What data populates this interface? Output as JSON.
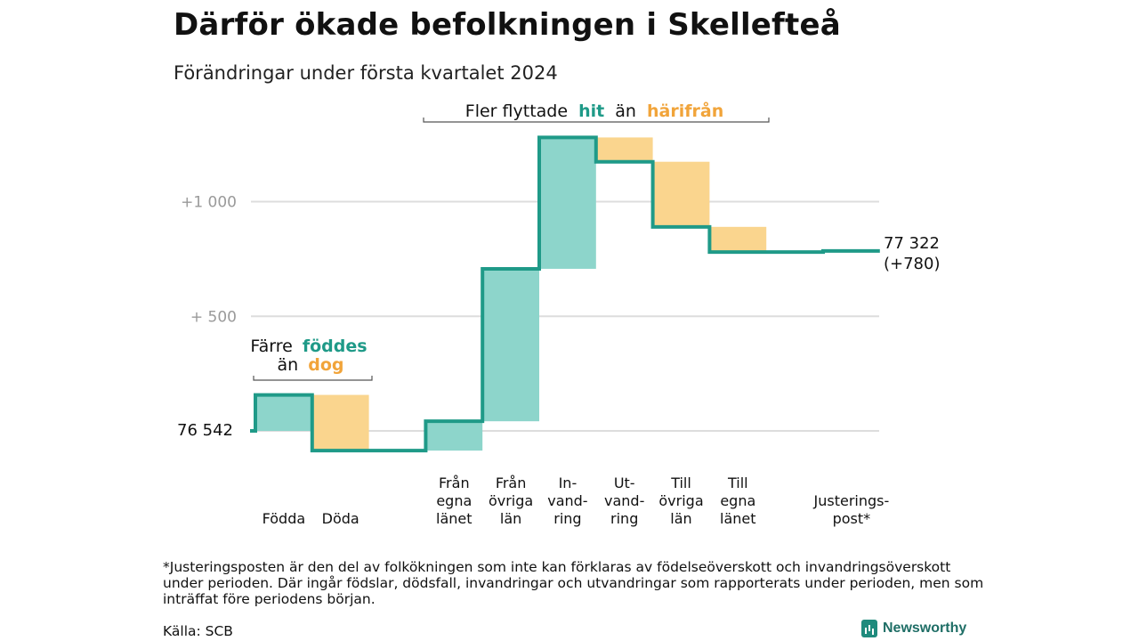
{
  "title": "Därför ökade befolkningen i Skellefteå",
  "subtitle": "Förändringar under första kvartalet 2024",
  "annotations": {
    "moved": {
      "prefix": "Fler flyttade",
      "hit": "hit",
      "middle": "än",
      "away": "härifrån"
    },
    "births": {
      "line1_prefix": "Färre",
      "line1_hit": "föddes",
      "line2_prefix": "än",
      "line2_away": "dog"
    }
  },
  "end_label": {
    "line1": "77 322",
    "line2": "(+780)"
  },
  "start_label": "76 542",
  "footnote": "*Justeringsposten är den del av folkökningen som inte kan förklaras av födelseöverskott och invandringsöverskott under perioden. Där ingår födslar, dödsfall, invandringar och utvandringar som rapporterats under perioden, men som inträffat före periodens början.",
  "source": "Källa: SCB",
  "brand": "Newsworthy",
  "colors": {
    "increase": "#8dd5cb",
    "decrease": "#fad58e",
    "line": "#1f9a88",
    "hit": "#1f9a88",
    "away": "#f1a43a"
  },
  "chart_data": {
    "type": "waterfall",
    "start": 76542,
    "end": 77322,
    "change": 780,
    "baseline_display": 0,
    "ylim": [
      -60,
      1370
    ],
    "yticks": [
      {
        "value": 500,
        "label": "+ 500"
      },
      {
        "value": 1000,
        "label": "+1 000"
      }
    ],
    "ytick_start_label": "76 542",
    "steps": [
      {
        "category": [
          "Födda"
        ],
        "delta": 157
      },
      {
        "category": [
          "Döda"
        ],
        "delta": -243
      },
      {
        "category": [
          ""
        ],
        "delta": 0
      },
      {
        "category": [
          "Från",
          "egna",
          "länet"
        ],
        "delta": 128
      },
      {
        "category": [
          "Från",
          "övriga",
          "län"
        ],
        "delta": 665
      },
      {
        "category": [
          "In-",
          "vand-",
          "ring"
        ],
        "delta": 573
      },
      {
        "category": [
          "Ut-",
          "vand-",
          "ring"
        ],
        "delta": -106
      },
      {
        "category": [
          "Till",
          "övriga",
          "län"
        ],
        "delta": -284
      },
      {
        "category": [
          "Till",
          "egna",
          "länet"
        ],
        "delta": -110
      },
      {
        "category": [
          ""
        ],
        "delta": 0
      },
      {
        "category": [
          "Justerings-",
          "post*"
        ],
        "delta": 5
      }
    ]
  }
}
